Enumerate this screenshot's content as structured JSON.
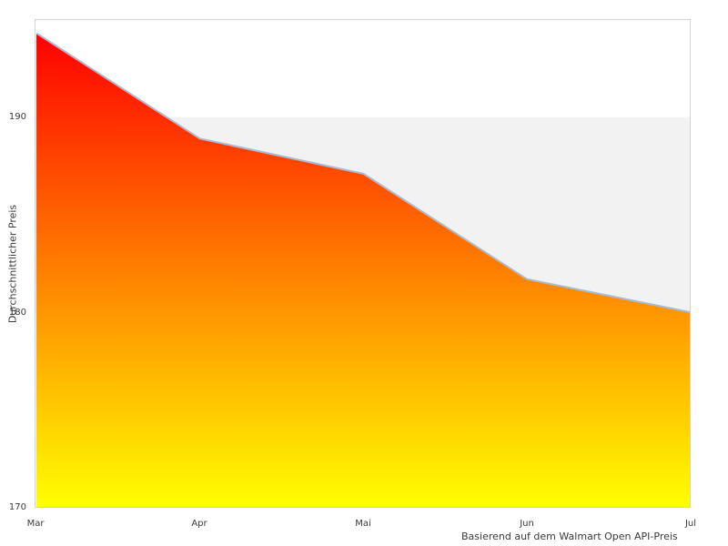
{
  "chart_data": {
    "type": "area",
    "categories": [
      "Mar",
      "Apr",
      "Mai",
      "Jun",
      "Jul"
    ],
    "values": [
      194.3,
      188.9,
      187.1,
      181.7,
      180.0
    ],
    "series_name": "Durchschnittlicher Preis",
    "xlabel": "",
    "ylabel": "Durchschnittlicher Preis",
    "caption": "Basierend auf dem Walmart Open API-Preis",
    "ylim": [
      170,
      195
    ],
    "yticks": [
      170,
      180,
      190
    ],
    "ytick_labels": [
      "170",
      "180",
      "190"
    ],
    "band": {
      "from": 180,
      "to": 190
    },
    "legend": "none",
    "colors": {
      "fill_gradient_top": "#ff0000",
      "fill_gradient_bottom": "#ffff00",
      "line": "#a3bdd7",
      "band": "#f2f2f2",
      "plot_border": "#d3d3d3",
      "text": "#3a3a3a",
      "background": "#ffffff"
    }
  }
}
